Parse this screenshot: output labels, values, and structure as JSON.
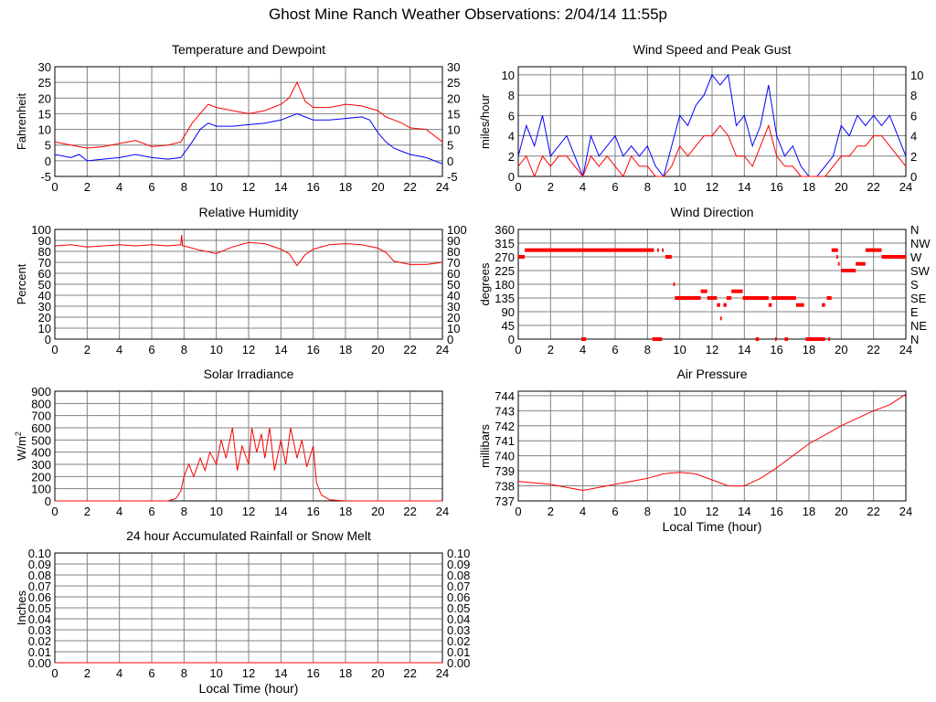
{
  "page": {
    "title": "Ghost Mine Ranch Weather Observations: 2/04/14 11:55p"
  },
  "colors": {
    "red": "#ff0000",
    "blue": "#0000ff",
    "grid": "#808080"
  },
  "chart_data": [
    {
      "id": "temp",
      "type": "line",
      "title": "Temperature and Dewpoint",
      "ylabel": "Fahrenheit",
      "xlabel": "",
      "xlim": [
        0,
        24
      ],
      "ylim": [
        -5,
        30
      ],
      "yticks": [
        "-5",
        "0",
        "5",
        "10",
        "15",
        "20",
        "25",
        "30"
      ],
      "xticks": [
        "0",
        "2",
        "4",
        "6",
        "8",
        "10",
        "12",
        "14",
        "16",
        "18",
        "20",
        "22",
        "24"
      ],
      "right_axis": true,
      "series": [
        {
          "color": "#ff0000",
          "x": [
            0,
            1,
            2,
            3,
            4,
            5,
            6,
            7,
            7.8,
            8.5,
            9,
            9.5,
            10,
            11,
            12,
            13,
            14,
            14.5,
            15,
            15.5,
            16,
            17,
            18,
            19,
            20,
            20.5,
            21,
            21.5,
            22,
            23,
            24
          ],
          "y": [
            6,
            5,
            4,
            4.5,
            5.5,
            6.5,
            4.5,
            5,
            6,
            12,
            15,
            18,
            17,
            16,
            15,
            16,
            18,
            20,
            25,
            19,
            17,
            17,
            18,
            17.5,
            16,
            14,
            13,
            12,
            10.5,
            10,
            6
          ]
        },
        {
          "color": "#0000ff",
          "x": [
            0,
            1,
            1.5,
            2,
            3,
            4,
            5,
            6,
            7,
            7.8,
            8.5,
            9,
            9.5,
            10,
            11,
            12,
            13,
            14,
            15,
            15.5,
            16,
            17,
            18,
            19,
            19.5,
            20,
            20.5,
            21,
            21.5,
            22,
            23,
            24
          ],
          "y": [
            2,
            1,
            2,
            0,
            0.5,
            1,
            2,
            1,
            0.5,
            1,
            6,
            10,
            12,
            11,
            11,
            11.5,
            12,
            13,
            15,
            14,
            13,
            13,
            13.5,
            14,
            13,
            9,
            6,
            4,
            3,
            2,
            1,
            -1
          ]
        }
      ]
    },
    {
      "id": "wind",
      "type": "line",
      "title": "Wind Speed and Peak Gust",
      "ylabel": "miles/hour",
      "xlabel": "",
      "xlim": [
        0,
        24
      ],
      "ylim": [
        0,
        10.8
      ],
      "yticks": [
        "0",
        "2",
        "4",
        "6",
        "8",
        "10"
      ],
      "xticks": [
        "0",
        "2",
        "4",
        "6",
        "8",
        "10",
        "12",
        "14",
        "16",
        "18",
        "20",
        "22",
        "24"
      ],
      "right_axis": true,
      "series": [
        {
          "color": "#0000ff",
          "x": [
            0,
            0.5,
            1,
            1.5,
            2,
            2.5,
            3,
            3.5,
            4,
            4.5,
            5,
            5.5,
            6,
            6.5,
            7,
            7.5,
            8,
            8.5,
            9,
            9.5,
            10,
            10.5,
            11,
            11.5,
            12,
            12.5,
            13,
            13.5,
            14,
            14.5,
            15,
            15.5,
            16,
            16.5,
            17,
            17.5,
            18,
            18.5,
            19,
            19.5,
            20,
            20.5,
            21,
            21.5,
            22,
            22.5,
            23,
            23.5,
            24
          ],
          "y": [
            2,
            5,
            3,
            6,
            2,
            3,
            4,
            2,
            0,
            4,
            2,
            3,
            4,
            2,
            3,
            2,
            3,
            1,
            0,
            3,
            6,
            5,
            7,
            8,
            10,
            9,
            10,
            5,
            6,
            3,
            5,
            9,
            4,
            2,
            3,
            1,
            0,
            0,
            1,
            2,
            5,
            4,
            6,
            5,
            6,
            5,
            6,
            4,
            2
          ]
        },
        {
          "color": "#ff0000",
          "x": [
            0,
            0.5,
            1,
            1.5,
            2,
            2.5,
            3,
            3.5,
            4,
            4.5,
            5,
            5.5,
            6,
            6.5,
            7,
            7.5,
            8,
            8.5,
            9,
            9.5,
            10,
            10.5,
            11,
            11.5,
            12,
            12.5,
            13,
            13.5,
            14,
            14.5,
            15,
            15.5,
            16,
            16.5,
            17,
            17.5,
            18,
            18.5,
            19,
            19.5,
            20,
            20.5,
            21,
            21.5,
            22,
            22.5,
            23,
            23.5,
            24
          ],
          "y": [
            1,
            2,
            0,
            2,
            1,
            2,
            2,
            1,
            0,
            2,
            1,
            2,
            1,
            0,
            2,
            1,
            1,
            0,
            0,
            1,
            3,
            2,
            3,
            4,
            4,
            5,
            4,
            2,
            2,
            1,
            3,
            5,
            2,
            1,
            1,
            0,
            0,
            0,
            0,
            1,
            2,
            2,
            3,
            3,
            4,
            4,
            3,
            2,
            1
          ]
        }
      ]
    },
    {
      "id": "rh",
      "type": "line",
      "title": "Relative Humidity",
      "ylabel": "Percent",
      "xlabel": "",
      "xlim": [
        0,
        24
      ],
      "ylim": [
        0,
        100
      ],
      "yticks": [
        "0",
        "10",
        "20",
        "30",
        "40",
        "50",
        "60",
        "70",
        "80",
        "90",
        "100"
      ],
      "xticks": [
        "0",
        "2",
        "4",
        "6",
        "8",
        "10",
        "12",
        "14",
        "16",
        "18",
        "20",
        "22",
        "24"
      ],
      "right_axis": true,
      "series": [
        {
          "color": "#ff0000",
          "x": [
            0,
            1,
            2,
            3,
            4,
            5,
            6,
            7,
            7.8,
            7.85,
            7.9,
            8,
            9,
            10,
            11,
            12,
            13,
            14,
            14.5,
            15,
            15.5,
            16,
            17,
            18,
            19,
            20,
            20.5,
            21,
            22,
            23,
            24
          ],
          "y": [
            85,
            86,
            84,
            85,
            86,
            85,
            86,
            85,
            86,
            95,
            85,
            85,
            81,
            78,
            84,
            88,
            87,
            82,
            78,
            67,
            77,
            82,
            86,
            87,
            86,
            83,
            79,
            71,
            68,
            68,
            70
          ]
        }
      ]
    },
    {
      "id": "dir",
      "type": "scatter",
      "title": "Wind Direction",
      "ylabel": "degrees",
      "xlabel": "",
      "xlim": [
        0,
        24
      ],
      "ylim": [
        0,
        360
      ],
      "yticks": [
        "0",
        "45",
        "90",
        "135",
        "180",
        "225",
        "270",
        "315",
        "360"
      ],
      "right_labels": [
        "N",
        "NE",
        "E",
        "SE",
        "S",
        "SW",
        "W",
        "NW",
        "N"
      ],
      "xticks": [
        "0",
        "2",
        "4",
        "6",
        "8",
        "10",
        "12",
        "14",
        "16",
        "18",
        "20",
        "22",
        "24"
      ],
      "segments": [
        [
          0,
          0.4,
          270
        ],
        [
          0.4,
          8.4,
          292
        ],
        [
          8.6,
          8.7,
          292
        ],
        [
          8.9,
          9.0,
          292
        ],
        [
          9.1,
          9.5,
          270
        ],
        [
          3.9,
          4.2,
          0
        ],
        [
          8.3,
          8.9,
          0
        ],
        [
          9.6,
          9.7,
          180
        ],
        [
          9.7,
          11.3,
          135
        ],
        [
          11.3,
          11.7,
          157
        ],
        [
          11.7,
          12.3,
          135
        ],
        [
          12.3,
          12.5,
          112
        ],
        [
          12.5,
          12.6,
          68
        ],
        [
          12.7,
          12.9,
          112
        ],
        [
          12.9,
          13.2,
          135
        ],
        [
          13.2,
          13.9,
          157
        ],
        [
          13.9,
          15.5,
          135
        ],
        [
          15.5,
          15.7,
          112
        ],
        [
          15.7,
          17.2,
          135
        ],
        [
          17.2,
          17.7,
          112
        ],
        [
          14.7,
          14.9,
          0
        ],
        [
          15.9,
          16.0,
          0
        ],
        [
          16.5,
          16.7,
          0
        ],
        [
          17.8,
          19.0,
          0
        ],
        [
          19.2,
          19.3,
          0
        ],
        [
          18.8,
          19.0,
          112
        ],
        [
          19.1,
          19.4,
          135
        ],
        [
          19.4,
          19.8,
          292
        ],
        [
          19.7,
          19.8,
          270
        ],
        [
          19.8,
          19.9,
          247
        ],
        [
          20.0,
          20.9,
          225
        ],
        [
          20.9,
          21.5,
          247
        ],
        [
          21.5,
          22.5,
          292
        ],
        [
          22.5,
          24,
          270
        ]
      ]
    },
    {
      "id": "solar",
      "type": "line",
      "title": "Solar Irradiance",
      "ylabel": "W/m2",
      "xlabel": "",
      "xlim": [
        0,
        24
      ],
      "ylim": [
        0,
        900
      ],
      "yticks": [
        "0",
        "100",
        "200",
        "300",
        "400",
        "500",
        "600",
        "700",
        "800",
        "900"
      ],
      "xticks": [
        "0",
        "2",
        "4",
        "6",
        "8",
        "10",
        "12",
        "14",
        "16",
        "18",
        "20",
        "22",
        "24"
      ],
      "right_axis": false,
      "series": [
        {
          "color": "#ff0000",
          "x": [
            0,
            7,
            7.5,
            7.8,
            8,
            8.3,
            8.6,
            9,
            9.3,
            9.6,
            10,
            10.3,
            10.6,
            11,
            11.3,
            11.6,
            12,
            12.2,
            12.5,
            12.8,
            13,
            13.3,
            13.6,
            14,
            14.3,
            14.6,
            15,
            15.3,
            15.6,
            16,
            16.2,
            16.5,
            17,
            18,
            24
          ],
          "y": [
            0,
            0,
            20,
            80,
            200,
            300,
            200,
            350,
            250,
            400,
            300,
            500,
            350,
            600,
            250,
            450,
            300,
            600,
            400,
            550,
            350,
            600,
            250,
            500,
            300,
            600,
            350,
            500,
            280,
            450,
            150,
            50,
            10,
            0,
            0
          ]
        }
      ]
    },
    {
      "id": "pres",
      "type": "line",
      "title": "Air Pressure",
      "ylabel": "millibars",
      "xlabel": "Local Time (hour)",
      "xlim": [
        0,
        24
      ],
      "ylim": [
        737,
        744.3
      ],
      "yticks": [
        "737",
        "738",
        "739",
        "740",
        "741",
        "742",
        "743",
        "744"
      ],
      "xticks": [
        "0",
        "2",
        "4",
        "6",
        "8",
        "10",
        "12",
        "14",
        "16",
        "18",
        "20",
        "22",
        "24"
      ],
      "right_axis": false,
      "series": [
        {
          "color": "#ff0000",
          "x": [
            0,
            1,
            2,
            3,
            4,
            5,
            6,
            7,
            8,
            9,
            10,
            11,
            12,
            13,
            14,
            15,
            16,
            17,
            18,
            19,
            20,
            21,
            22,
            23,
            24
          ],
          "y": [
            738.3,
            738.2,
            738.1,
            737.9,
            737.7,
            737.9,
            738.1,
            738.3,
            738.5,
            738.8,
            738.9,
            738.8,
            738.4,
            738,
            738,
            738.5,
            739.2,
            740,
            740.8,
            741.4,
            742,
            742.5,
            743,
            743.4,
            744.1
          ]
        }
      ]
    },
    {
      "id": "rain",
      "type": "line",
      "title": "24 hour Accumulated Rainfall or Snow Melt",
      "ylabel": "Inches",
      "xlabel": "Local Time (hour)",
      "xlim": [
        0,
        24
      ],
      "ylim": [
        0,
        0.1
      ],
      "yticks": [
        "0.00",
        "0.01",
        "0.02",
        "0.03",
        "0.04",
        "0.05",
        "0.06",
        "0.07",
        "0.08",
        "0.09",
        "0.10"
      ],
      "xticks": [
        "0",
        "2",
        "4",
        "6",
        "8",
        "10",
        "12",
        "14",
        "16",
        "18",
        "20",
        "22",
        "24"
      ],
      "right_axis": true,
      "series": [
        {
          "color": "#ff0000",
          "x": [
            0,
            24
          ],
          "y": [
            0,
            0
          ]
        }
      ]
    }
  ]
}
